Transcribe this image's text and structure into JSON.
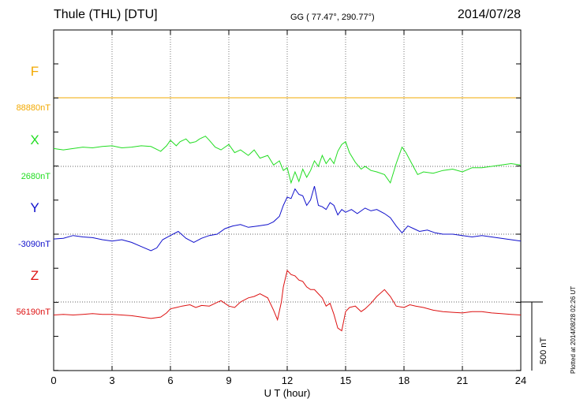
{
  "header": {
    "title": "Thule (THL)  [DTU]",
    "coords": "GG ( 77.47°, 290.77°)",
    "date": "2014/07/28"
  },
  "footer": {
    "plotted": "Plotted at 2014/08/28 02:26 UT",
    "scale_label": "500 nT"
  },
  "chart_data": {
    "type": "line",
    "title": "Thule (THL)  [DTU]",
    "xlabel": "U T (hour)",
    "x_ticks": [
      0,
      3,
      6,
      9,
      12,
      15,
      18,
      21,
      24
    ],
    "xlim": [
      0,
      24
    ],
    "grid": true,
    "scale_bar_nT": 500,
    "series": [
      {
        "name": "F",
        "baseline_label": "88880nT",
        "baseline_nT": 88880,
        "color": "#f2a900",
        "x": [
          0,
          24
        ],
        "y": [
          88880,
          88880
        ]
      },
      {
        "name": "X",
        "baseline_label": "2680nT",
        "baseline_nT": 2680,
        "color": "#22dd22",
        "x": [
          0,
          0.5,
          1,
          1.5,
          2,
          2.5,
          3,
          3.5,
          4,
          4.5,
          5,
          5.5,
          5.8,
          6,
          6.3,
          6.5,
          6.8,
          7,
          7.3,
          7.5,
          7.8,
          8,
          8.3,
          8.6,
          9,
          9.3,
          9.6,
          10,
          10.3,
          10.6,
          11,
          11.3,
          11.6,
          11.8,
          12,
          12.2,
          12.4,
          12.6,
          12.8,
          13,
          13.2,
          13.4,
          13.6,
          13.8,
          14,
          14.2,
          14.4,
          14.6,
          14.8,
          15,
          15.2,
          15.5,
          15.8,
          16,
          16.3,
          16.6,
          17,
          17.3,
          17.6,
          17.9,
          18.1,
          18.4,
          18.7,
          19,
          19.5,
          20,
          20.5,
          21,
          21.5,
          22,
          22.5,
          23,
          23.5,
          24
        ],
        "y": [
          2810,
          2800,
          2810,
          2820,
          2815,
          2825,
          2830,
          2815,
          2820,
          2830,
          2825,
          2790,
          2830,
          2870,
          2830,
          2860,
          2880,
          2850,
          2860,
          2880,
          2900,
          2870,
          2820,
          2800,
          2840,
          2780,
          2800,
          2760,
          2800,
          2740,
          2760,
          2690,
          2720,
          2650,
          2670,
          2560,
          2640,
          2570,
          2660,
          2600,
          2650,
          2720,
          2680,
          2760,
          2700,
          2740,
          2700,
          2790,
          2840,
          2860,
          2780,
          2710,
          2660,
          2680,
          2650,
          2640,
          2620,
          2560,
          2700,
          2820,
          2780,
          2700,
          2620,
          2640,
          2630,
          2650,
          2660,
          2640,
          2670,
          2670,
          2680,
          2690,
          2700,
          2690
        ]
      },
      {
        "name": "Y",
        "baseline_label": "-3090nT",
        "baseline_nT": -3090,
        "color": "#1010cc",
        "x": [
          0,
          0.5,
          1,
          1.5,
          2,
          2.5,
          3,
          3.5,
          4,
          4.5,
          5,
          5.3,
          5.6,
          6,
          6.4,
          6.8,
          7.2,
          7.6,
          8,
          8.4,
          8.8,
          9.2,
          9.6,
          10,
          10.5,
          11,
          11.3,
          11.6,
          11.8,
          12,
          12.2,
          12.4,
          12.6,
          12.8,
          13,
          13.2,
          13.4,
          13.6,
          13.8,
          14,
          14.2,
          14.4,
          14.6,
          14.8,
          15,
          15.3,
          15.6,
          16,
          16.3,
          16.6,
          17,
          17.3,
          17.6,
          17.9,
          18.2,
          18.5,
          18.8,
          19.2,
          19.6,
          20,
          20.5,
          21,
          21.5,
          22,
          22.5,
          23,
          23.5,
          24
        ],
        "y": [
          -3125,
          -3120,
          -3100,
          -3110,
          -3115,
          -3130,
          -3140,
          -3130,
          -3150,
          -3180,
          -3210,
          -3190,
          -3130,
          -3100,
          -3070,
          -3120,
          -3150,
          -3120,
          -3100,
          -3090,
          -3050,
          -3030,
          -3020,
          -3040,
          -3030,
          -3020,
          -3000,
          -2960,
          -2880,
          -2820,
          -2830,
          -2760,
          -2800,
          -2810,
          -2880,
          -2840,
          -2740,
          -2880,
          -2890,
          -2910,
          -2860,
          -2880,
          -2950,
          -2910,
          -2930,
          -2910,
          -2940,
          -2900,
          -2920,
          -2910,
          -2940,
          -2970,
          -3030,
          -3080,
          -3030,
          -3050,
          -3070,
          -3060,
          -3080,
          -3090,
          -3090,
          -3100,
          -3110,
          -3100,
          -3110,
          -3120,
          -3130,
          -3140
        ]
      },
      {
        "name": "Z",
        "baseline_label": "56190nT",
        "baseline_nT": 56190,
        "color": "#dd1111",
        "x": [
          0,
          0.5,
          1,
          1.5,
          2,
          2.5,
          3,
          3.5,
          4,
          4.5,
          5,
          5.5,
          5.8,
          6,
          6.3,
          6.6,
          7,
          7.3,
          7.6,
          8,
          8.3,
          8.6,
          9,
          9.3,
          9.6,
          10,
          10.3,
          10.6,
          11,
          11.3,
          11.5,
          11.7,
          11.8,
          12,
          12.2,
          12.4,
          12.6,
          12.8,
          13,
          13.2,
          13.4,
          13.6,
          13.8,
          14,
          14.2,
          14.4,
          14.6,
          14.8,
          15,
          15.2,
          15.5,
          15.8,
          16,
          16.3,
          16.6,
          17,
          17.3,
          17.6,
          18,
          18.3,
          18.6,
          19,
          19.5,
          20,
          20.5,
          21,
          21.5,
          22,
          22.5,
          23,
          23.5,
          24
        ],
        "y": [
          56095,
          56100,
          56095,
          56100,
          56105,
          56100,
          56100,
          56095,
          56090,
          56080,
          56070,
          56080,
          56110,
          56140,
          56150,
          56160,
          56170,
          56150,
          56165,
          56160,
          56180,
          56200,
          56160,
          56150,
          56190,
          56220,
          56230,
          56250,
          56220,
          56130,
          56060,
          56190,
          56300,
          56420,
          56390,
          56380,
          56350,
          56340,
          56300,
          56280,
          56280,
          56250,
          56220,
          56160,
          56180,
          56100,
          56000,
          55980,
          56120,
          56150,
          56160,
          56120,
          56140,
          56180,
          56230,
          56280,
          56230,
          56160,
          56150,
          56170,
          56160,
          56150,
          56130,
          56120,
          56115,
          56110,
          56120,
          56120,
          56110,
          56105,
          56100,
          56095
        ]
      }
    ]
  }
}
